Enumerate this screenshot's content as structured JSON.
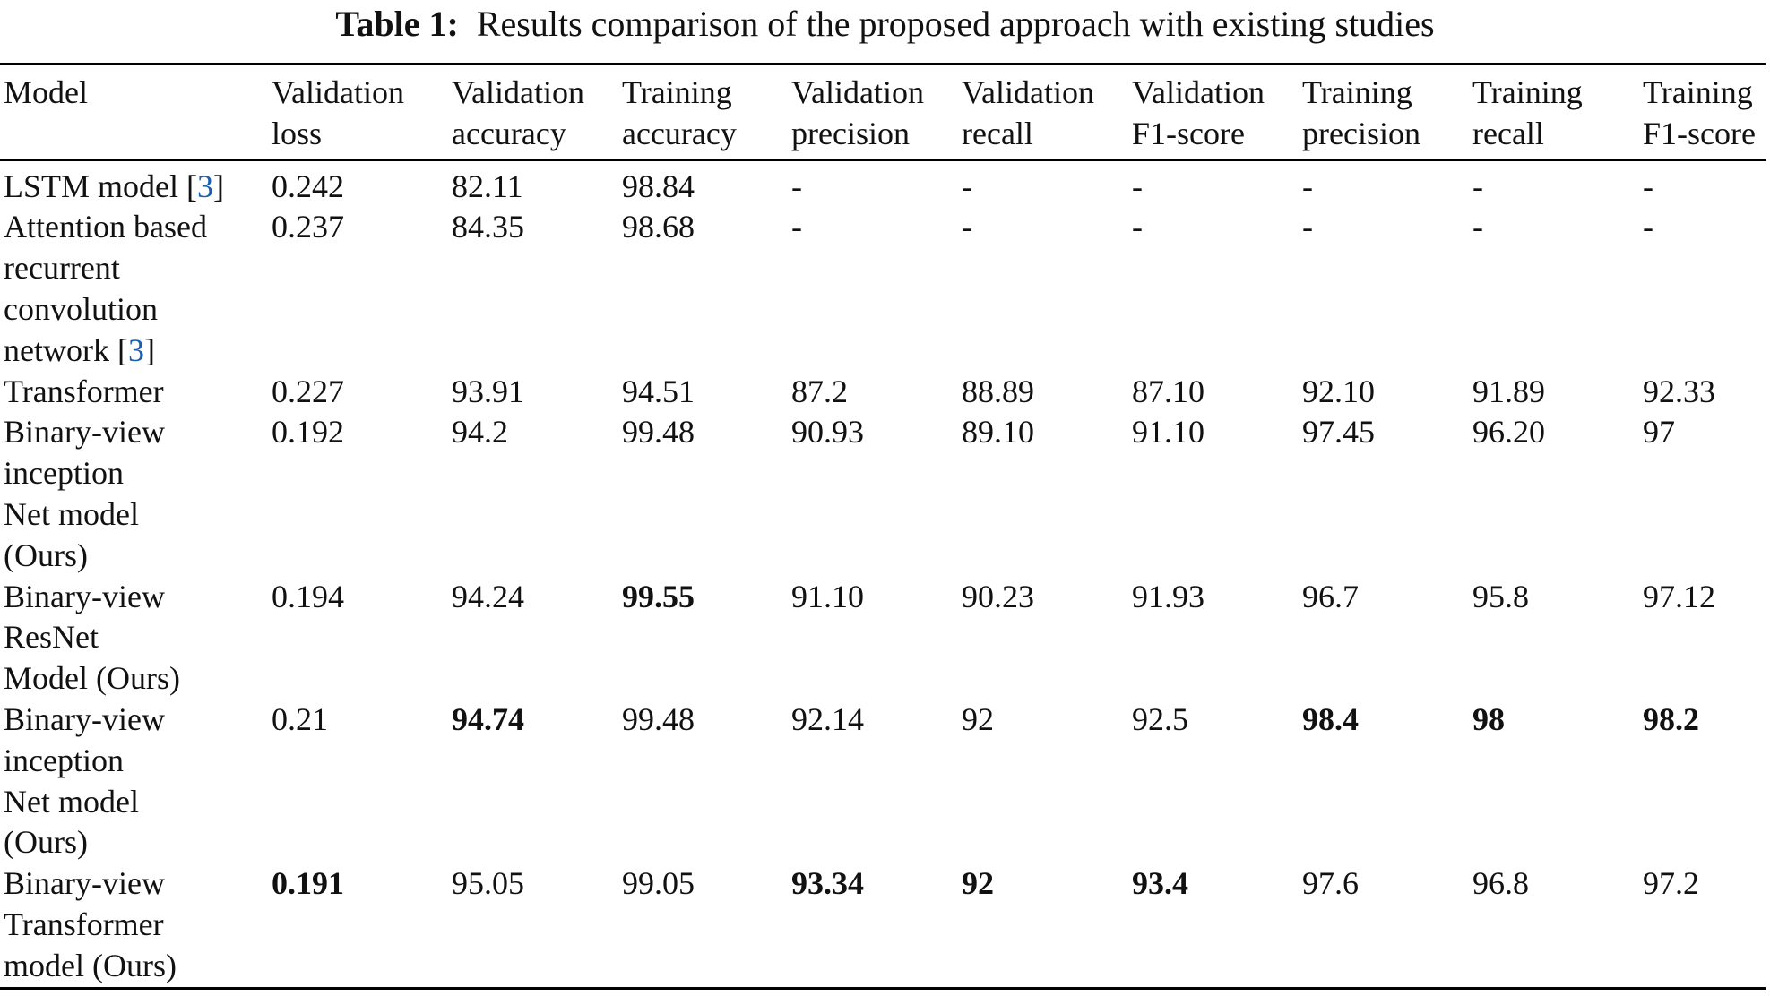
{
  "caption": {
    "label": "Table 1:",
    "text": "Results comparison of the proposed approach with existing studies"
  },
  "columns": [
    "Model",
    "Validation\nloss",
    "Validation\naccuracy",
    "Training\naccuracy",
    "Validation\nprecision",
    "Validation\nrecall",
    "Validation\nF1-score",
    "Training\nprecision",
    "Training\nrecall",
    "Training\nF1-score"
  ],
  "rows": [
    {
      "model": "LSTM model [",
      "ref": "3",
      "ref_close": "]",
      "values": [
        "0.242",
        "82.11",
        "98.84",
        "-",
        "-",
        "-",
        "-",
        "-",
        "-"
      ],
      "bold": []
    },
    {
      "model": "Attention based\nrecurrent\nconvolution\nnetwork [",
      "ref": "3",
      "ref_close": "]",
      "values": [
        "0.237",
        "84.35",
        "98.68",
        "-",
        "-",
        "-",
        "-",
        "-",
        "-"
      ],
      "bold": []
    },
    {
      "model": "Transformer",
      "values": [
        "0.227",
        "93.91",
        "94.51",
        "87.2",
        "88.89",
        "87.10",
        "92.10",
        "91.89",
        "92.33"
      ],
      "bold": []
    },
    {
      "model": "Binary-view\ninception\nNet model\n(Ours)",
      "values": [
        "0.192",
        "94.2",
        "99.48",
        "90.93",
        "89.10",
        "91.10",
        "97.45",
        "96.20",
        "97"
      ],
      "bold": []
    },
    {
      "model": "Binary-view\nResNet\nModel (Ours)",
      "values": [
        "0.194",
        "94.24",
        "99.55",
        "91.10",
        "90.23",
        "91.93",
        "96.7",
        "95.8",
        "97.12"
      ],
      "bold": [
        2
      ]
    },
    {
      "model": "Binary-view\ninception\nNet model\n(Ours)",
      "values": [
        "0.21",
        "94.74",
        "99.48",
        "92.14",
        "92",
        "92.5",
        "98.4",
        "98",
        "98.2"
      ],
      "bold": [
        1,
        6,
        7,
        8
      ]
    },
    {
      "model": "Binary-view\nTransformer\nmodel (Ours)",
      "values": [
        "0.191",
        "95.05",
        "99.05",
        "93.34",
        "92",
        "93.4",
        "97.6",
        "96.8",
        "97.2"
      ],
      "bold": [
        0,
        3,
        4,
        5
      ]
    }
  ],
  "colors": {
    "reference_link": "#1a5fb4"
  }
}
